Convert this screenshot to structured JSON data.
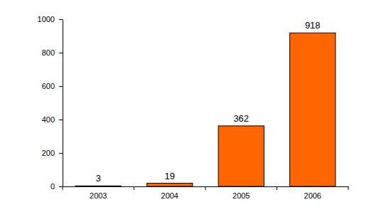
{
  "chart_data": {
    "type": "bar",
    "categories": [
      "2003",
      "2004",
      "2005",
      "2006"
    ],
    "values": [
      3,
      19,
      362,
      918
    ],
    "color": "#ff6600",
    "ylim": [
      0,
      1000
    ],
    "yticks": [
      0,
      200,
      400,
      600,
      800,
      1000
    ],
    "grid": false,
    "data_labels": true
  }
}
